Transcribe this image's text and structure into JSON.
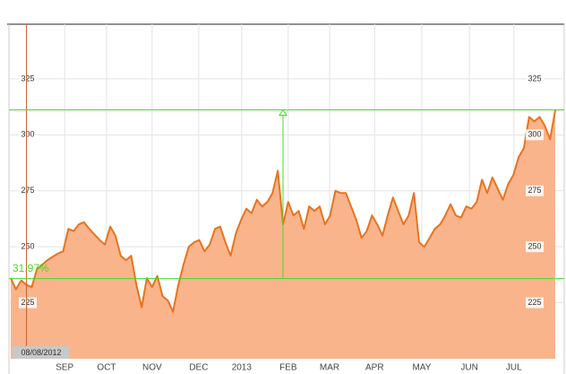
{
  "chart_data": {
    "type": "area",
    "values": [
      236,
      231,
      235,
      233,
      232,
      240,
      242,
      244,
      245.5,
      247,
      248,
      258,
      257,
      260,
      261,
      258,
      255.5,
      253,
      251,
      259,
      255,
      246,
      244,
      246,
      233,
      223,
      236,
      232,
      237,
      228,
      226,
      221,
      233,
      242,
      250,
      252,
      253,
      248,
      251,
      258,
      259,
      252,
      246,
      256,
      262,
      267,
      265,
      271,
      268,
      270,
      274,
      284,
      260,
      270,
      264,
      266,
      258,
      268,
      266,
      268,
      260,
      264,
      275,
      274,
      274,
      268,
      262,
      254,
      257,
      264,
      260,
      255,
      264,
      272,
      266,
      260,
      264,
      274,
      252,
      250,
      254,
      258,
      260,
      264,
      269,
      264,
      263,
      268,
      267,
      270,
      280,
      274,
      281,
      276,
      271,
      278,
      282,
      290,
      294,
      308,
      306,
      308,
      304,
      298,
      311
    ],
    "color": "#e8731f",
    "fill": "#f9b48c",
    "ylim": [
      200,
      349.4
    ],
    "yticks": [
      225,
      250,
      275,
      300,
      325
    ],
    "xlim": [
      0,
      104
    ],
    "xticks": [
      {
        "value": 10.3,
        "label": "SEP"
      },
      {
        "value": 18.3,
        "label": "OCT"
      },
      {
        "value": 27,
        "label": "NOV"
      },
      {
        "value": 35.9,
        "label": "DEC"
      },
      {
        "value": 44.1,
        "label": "2013"
      },
      {
        "value": 53,
        "label": "FEB"
      },
      {
        "value": 60.9,
        "label": "MAR"
      },
      {
        "value": 69.5,
        "label": "APR"
      },
      {
        "value": 78.5,
        "label": "MAY"
      },
      {
        "value": 87.6,
        "label": "JUN"
      },
      {
        "value": 96.1,
        "label": "JUL"
      }
    ],
    "grid": true,
    "range_low": 235.78,
    "range_high": 311.16,
    "range_marker_x": 52,
    "range_label": "31.97%",
    "range_color": "#44dd22",
    "cursor_x": 3,
    "cursor_label": "08/08/2012"
  }
}
